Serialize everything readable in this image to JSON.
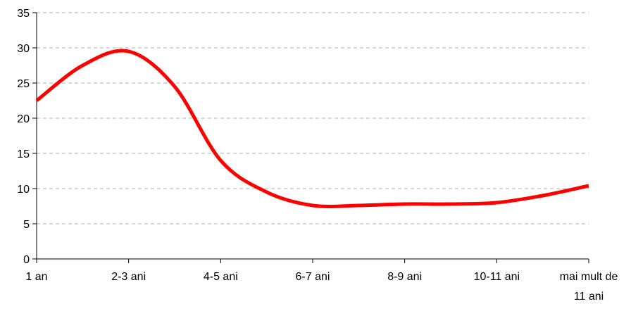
{
  "chart_data": {
    "type": "line",
    "title": "",
    "xlabel": "",
    "ylabel": "",
    "ylim": [
      0,
      35
    ],
    "y_ticks": [
      "0",
      "5",
      "10",
      "15",
      "20",
      "25",
      "30",
      "35"
    ],
    "categories": [
      "1 an",
      "2-3 ani",
      "4-5 ani",
      "6-7 ani",
      "8-9 ani",
      "10-11 ani",
      "mai mult de 11 ani"
    ],
    "category_lines": [
      [
        "1 an"
      ],
      [
        "2-3 ani"
      ],
      [
        "4-5 ani"
      ],
      [
        "6-7 ani"
      ],
      [
        "8-9 ani"
      ],
      [
        "10-11 ani"
      ],
      [
        "mai mult de",
        "11 ani"
      ]
    ],
    "grid": "horizontal dashed",
    "legend": "none",
    "series": [
      {
        "color": "#ff0000",
        "smooth": true,
        "x": [
          0,
          0.5,
          1,
          1.5,
          2,
          2.5,
          3,
          3.5,
          4,
          4.5,
          5,
          5.5,
          6
        ],
        "values": [
          22.5,
          27.5,
          29.5,
          24.5,
          14,
          9.5,
          7.6,
          7.6,
          7.8,
          7.8,
          8,
          9,
          10.4
        ]
      }
    ]
  }
}
